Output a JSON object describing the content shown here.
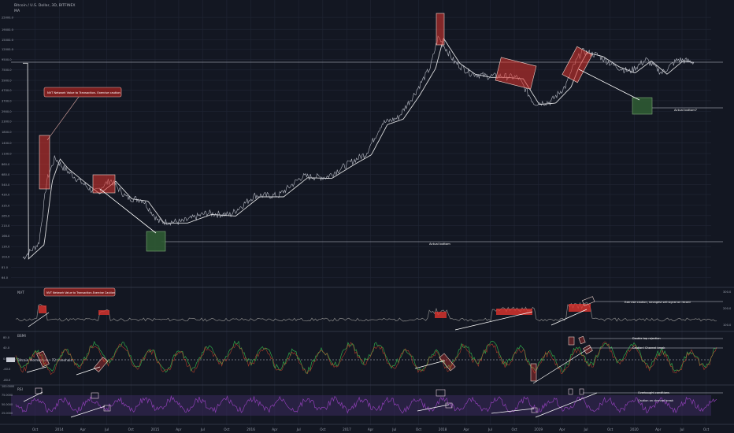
{
  "header": {
    "title": "Bitcoin / U.S. Dollar, 3D, BITFINEX",
    "subtitle": "MA"
  },
  "colors": {
    "background": "#131722",
    "grid": "#1f2433",
    "price": "#c9ccd6",
    "ma": "#ffffff",
    "red_box": "#e0342e",
    "green_box": "#2f5a33",
    "nvt_line": "#8a8a8a",
    "osc_green": "#2fa84a",
    "osc_red": "#d2452c",
    "rsi": "#8e3fb5",
    "rsi_band": "#3b2a5c"
  },
  "chart_data": [
    {
      "type": "line",
      "panel": "price",
      "title": "Bitcoin / U.S. Dollar, 3D, BITFINEX",
      "y_scale": "log",
      "y_ticks": [
        "25000.0",
        "19000.0",
        "15000.0",
        "12000.0",
        "9500.0",
        "7500.0",
        "5900.0",
        "4700.0",
        "3700.0",
        "2900.0",
        "2300.0",
        "1800.0",
        "1400.0",
        "1100.0",
        "860.0",
        "680.0",
        "540.0",
        "430.0",
        "335.0",
        "265.0",
        "210.0",
        "166.0",
        "130.0",
        "103.0",
        "81.0",
        "64.0"
      ],
      "x_ticks": [
        "Oct",
        "2014",
        "Apr",
        "Jul",
        "Oct",
        "2015",
        "Apr",
        "Jul",
        "Oct",
        "2016",
        "Apr",
        "Jul",
        "Oct",
        "2017",
        "Apr",
        "Jul",
        "Oct",
        "2018",
        "Apr",
        "Jul",
        "Oct",
        "2019",
        "Apr",
        "Jul",
        "Oct",
        "2020",
        "Apr",
        "Jul",
        "Oct"
      ],
      "series": [
        {
          "name": "",
          "x": [
            "2013-08",
            "2013-10",
            "2013-11",
            "2013-12",
            "2014-01",
            "2014-03",
            "2014-05",
            "2014-07",
            "2014-09",
            "2014-11",
            "2015-01",
            "2015-04",
            "2015-07",
            "2015-10",
            "2016-01",
            "2016-04",
            "2016-07",
            "2016-10",
            "2017-01",
            "2017-03",
            "2017-05",
            "2017-07",
            "2017-09",
            "2017-11",
            "2017-12",
            "2018-02",
            "2018-04",
            "2018-06",
            "2018-08",
            "2018-10",
            "2018-12",
            "2019-02",
            "2019-04",
            "2019-05",
            "2019-06",
            "2019-08",
            "2019-10",
            "2019-12",
            "2020-02",
            "2020-04",
            "2020-06",
            "2020-08"
          ],
          "y": [
            100,
            140,
            600,
            1000,
            800,
            600,
            450,
            600,
            400,
            380,
            230,
            230,
            280,
            270,
            420,
            420,
            650,
            640,
            900,
            1100,
            2200,
            2500,
            4300,
            8000,
            16000,
            9000,
            7000,
            6500,
            6500,
            6300,
            3500,
            3600,
            5200,
            8200,
            11500,
            10500,
            8300,
            7200,
            9500,
            7000,
            9500,
            9000
          ]
        }
      ],
      "annotations": [
        "NVT Network Value to Transaction- Exercise caution",
        "Actual bottom",
        "Actual bottom?"
      ]
    },
    {
      "type": "line",
      "panel": "nvt",
      "title": "NVT",
      "y_ticks": [
        "300.0",
        "200.0",
        "100.0"
      ],
      "annotations": [
        "NVT Network Value to Transaction-Exercise Caution",
        "Exercise caution, strongest sell signal on record"
      ]
    },
    {
      "type": "line",
      "panel": "oscillator",
      "title": "BSMI",
      "y_ticks": [
        "80.0",
        "40.0",
        "0.00",
        "-40.0",
        "-80.0"
      ],
      "annotations": [
        "Bitcoin Momentum - 72 threshold",
        "Double top rejection",
        "Caution! Channel break"
      ]
    },
    {
      "type": "line",
      "panel": "rsi",
      "title": "RSI",
      "y_ticks": [
        "100.0000",
        "75.0000",
        "50.0000",
        "25.0000"
      ],
      "annotations": [
        "Overbought conditions",
        "Caution on channel break"
      ]
    }
  ]
}
